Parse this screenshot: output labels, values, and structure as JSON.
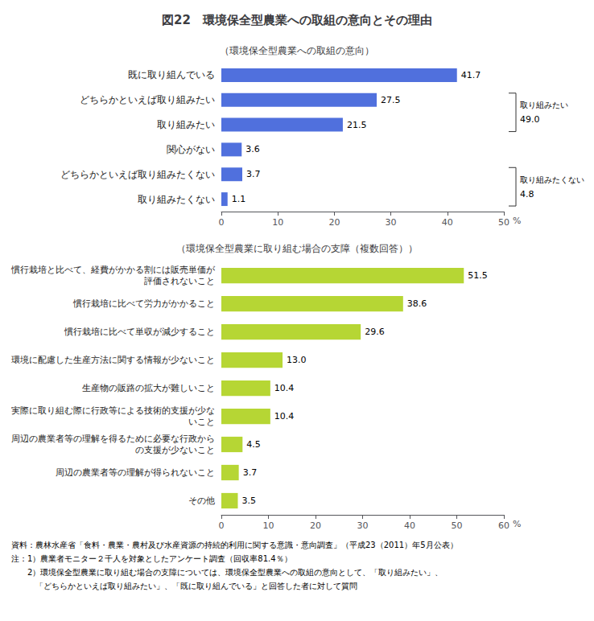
{
  "chart_data": [
    {
      "type": "bar",
      "orientation": "horizontal",
      "title": "図22　環境保全型農業への取組の意向とその理由",
      "subtitle": "（環境保全型農業への取組の意向）",
      "categories": [
        "既に取り組んでいる",
        "どちらかといえば取り組みたい",
        "取り組みたい",
        "関心がない",
        "どちらかといえば取り組みたくない",
        "取り組みたくない"
      ],
      "values": [
        41.7,
        27.5,
        21.5,
        3.6,
        3.7,
        1.1
      ],
      "xlim": [
        0,
        50
      ],
      "xticks": [
        0,
        10,
        20,
        30,
        40,
        50
      ],
      "x_label": "%",
      "grid": false,
      "data_labels": true,
      "annotations": [
        {
          "texts": [
            "取り組みたい",
            "49.0"
          ],
          "categories": [
            "どちらかといえば取り組みたい",
            "取り組みたい"
          ]
        },
        {
          "texts": [
            "取り組みたくない",
            "4.8"
          ],
          "categories": [
            "どちらかといえば取り組みたくない",
            "取り組みたくない"
          ]
        }
      ]
    },
    {
      "type": "bar",
      "orientation": "horizontal",
      "subtitle": "（環境保全型農業に取り組む場合の支障（複数回答））",
      "categories": [
        "慣行栽培と比べて、経費がかかる割には販売単価が\n評価されないこと",
        "慣行栽培に比べて労力がかかること",
        "慣行栽培に比べて単収が減少すること",
        "環境に配慮した生産方法に関する情報が少ないこと",
        "生産物の販路の拡大が難しいこと",
        "実際に取り組む際に行政等による技術的支援が少な\nいこと",
        "周辺の農業者等の理解を得るために必要な行政から\nの支援が少ないこと",
        "周辺の農業者等の理解が得られないこと",
        "その他"
      ],
      "values": [
        51.5,
        38.6,
        29.6,
        13.0,
        10.4,
        10.4,
        4.5,
        3.7,
        3.5
      ],
      "value_labels": [
        "51.5",
        "38.6",
        "29.6",
        "13.0",
        "10.4",
        "10.4",
        "4.5",
        "3.7",
        "3.5"
      ],
      "xlim": [
        0,
        60
      ],
      "xticks": [
        0,
        10,
        20,
        30,
        40,
        50,
        60
      ],
      "x_label": "%",
      "grid": false,
      "data_labels": true,
      "notes": [
        "資料：農林水産省「食料・農業・農村及び水産資源の持続的利用に関する意識・意向調査」（平成23（2011）年5月公表）",
        "注：1）農業者モニター２千人を対象としたアンケート調査（回収率81.4％）",
        "　　2）環境保全型農業に取り組む場合の支障については、環境保全型農業への取組の意向として、「取り組みたい」、",
        "　　　「どちらかといえば取り組みたい」、「既に取り組んでいる」と回答した者に対して質問"
      ]
    }
  ]
}
